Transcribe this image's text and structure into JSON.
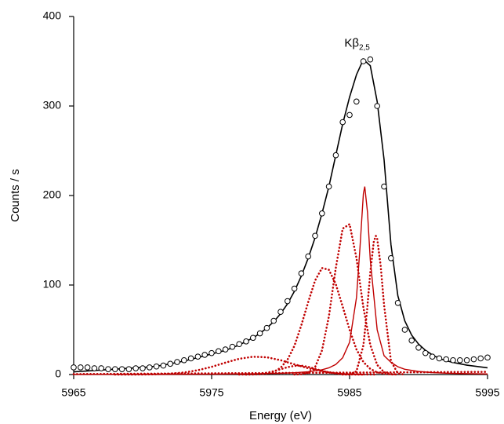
{
  "chart_data": {
    "type": "spectrum-fit",
    "x_label": "Energy (eV)",
    "y_label": "Counts / s",
    "annotation": {
      "text": "Kβ",
      "subscript": "2,5"
    },
    "xlim": [
      5965,
      5995
    ],
    "ylim": [
      0,
      400
    ],
    "xticks": [
      5965,
      5975,
      5985,
      5995
    ],
    "yticks": [
      0,
      100,
      200,
      300,
      400
    ],
    "grid": false,
    "x": [
      5965,
      5965.5,
      5966,
      5966.5,
      5967,
      5967.5,
      5968,
      5968.5,
      5969,
      5969.5,
      5970,
      5970.5,
      5971,
      5971.5,
      5972,
      5972.5,
      5973,
      5973.5,
      5974,
      5974.5,
      5975,
      5975.5,
      5976,
      5976.5,
      5977,
      5977.5,
      5978,
      5978.5,
      5979,
      5979.5,
      5980,
      5980.5,
      5981,
      5981.5,
      5982,
      5982.5,
      5983,
      5983.5,
      5984,
      5984.5,
      5985,
      5985.5,
      5986,
      5986.5,
      5987,
      5987.5,
      5988,
      5988.5,
      5989,
      5989.5,
      5990,
      5990.5,
      5991,
      5991.5,
      5992,
      5992.5,
      5993,
      5993.5,
      5994,
      5994.5,
      5995
    ],
    "series": [
      {
        "style": "dotted",
        "color": "#c00000",
        "x": [
          5965,
          5995
        ],
        "values": [
          0.5,
          3
        ]
      },
      {
        "style": "dotted",
        "color": "#c00000",
        "x": [
          5968,
          5969,
          5970,
          5971,
          5972,
          5973,
          5974,
          5975,
          5976,
          5977,
          5978,
          5979,
          5980,
          5981,
          5982,
          5983,
          5984,
          5985,
          5986,
          5987
        ],
        "values": [
          0.01,
          0.03,
          0.1,
          0.33,
          0.94,
          2.3,
          4.8,
          8.6,
          13.3,
          17.6,
          19.9,
          19.3,
          16,
          11.4,
          7,
          3.7,
          1.6,
          0.6,
          0.2,
          0.06
        ]
      },
      {
        "style": "dotted",
        "color": "#c00000",
        "x": [
          5977,
          5977.5,
          5978,
          5978.5,
          5979,
          5979.5,
          5980,
          5980.5,
          5981,
          5981.5,
          5982,
          5982.5,
          5983,
          5983.5,
          5984,
          5984.5,
          5985,
          5985.5,
          5986
        ],
        "values": [
          0.03,
          0.12,
          0.35,
          0.9,
          2,
          3.7,
          5.9,
          8.2,
          9.7,
          9.9,
          8.6,
          6.4,
          4.1,
          2.3,
          1.1,
          0.4,
          0.15,
          0.05,
          0
        ]
      },
      {
        "style": "dotted",
        "color": "#c00000",
        "x": [
          5977.5,
          5978,
          5978.5,
          5979,
          5979.5,
          5980,
          5980.5,
          5981,
          5981.5,
          5982,
          5982.5,
          5983,
          5983.5,
          5984,
          5984.5,
          5985,
          5985.5,
          5986,
          5986.5,
          5987,
          5987.5,
          5988,
          5988.5
        ],
        "values": [
          0.02,
          0.08,
          0.3,
          1.0,
          2.9,
          7.5,
          16.6,
          32,
          55,
          81,
          105,
          119,
          117,
          101,
          76,
          50,
          28,
          14,
          6.3,
          2.4,
          0.8,
          0.2,
          0.05
        ]
      },
      {
        "style": "dotted",
        "color": "#c00000",
        "x": [
          5981,
          5981.5,
          5982,
          5982.5,
          5983,
          5983.5,
          5984,
          5984.5,
          5985,
          5985.5,
          5986,
          5986.5,
          5987,
          5987.5,
          5988,
          5988.5
        ],
        "values": [
          0.04,
          0.34,
          1.9,
          8.3,
          26.9,
          65,
          119,
          163,
          168,
          130,
          75,
          33,
          10.8,
          2.6,
          0.5,
          0.07
        ]
      },
      {
        "style": "dotted",
        "color": "#c00000",
        "x": [
          5984.5,
          5985,
          5985.5,
          5986,
          5986.25,
          5986.5,
          5986.75,
          5986.9,
          5987,
          5987.25,
          5987.5,
          5988,
          5988.5,
          5989
        ],
        "values": [
          0,
          0.15,
          3.6,
          32.6,
          68.6,
          114,
          148,
          155,
          152,
          122,
          77.5,
          15,
          1.1,
          0
        ]
      },
      {
        "style": "solid",
        "color": "#c00000",
        "x": [
          5965,
          5970,
          5975,
          5978,
          5980,
          5981,
          5982,
          5983,
          5983.5,
          5984,
          5984.5,
          5985,
          5985.5,
          5985.75,
          5986,
          5986.1,
          5986.3,
          5986.5,
          5987,
          5987.5,
          5988,
          5988.5,
          5989,
          5990,
          5991,
          5992,
          5993,
          5995
        ],
        "values": [
          0.12,
          0.2,
          0.43,
          0.8,
          1.4,
          2.0,
          3.1,
          5.3,
          7.5,
          11.3,
          18.8,
          36,
          86,
          141,
          202,
          210,
          181,
          128,
          50,
          21,
          13.6,
          8.7,
          5.9,
          3.4,
          2.2,
          1.5,
          1.1,
          0.66
        ]
      },
      {
        "style": "fit",
        "color": "#000000",
        "values": [
          3,
          3.5,
          4,
          4.5,
          5,
          5.5,
          6,
          6.5,
          7,
          7.5,
          8,
          8.5,
          9.5,
          10.5,
          12,
          13.5,
          15,
          17,
          19,
          21,
          23,
          25,
          27,
          30,
          33,
          37,
          41,
          46,
          52,
          59,
          68,
          79,
          93,
          110,
          130,
          153,
          180,
          210,
          245,
          280,
          310,
          335,
          352,
          345,
          305,
          240,
          145,
          88,
          60,
          44,
          34,
          27,
          22,
          18,
          15.5,
          13.5,
          12,
          10.5,
          9.5,
          8.5,
          7.5
        ]
      },
      {
        "style": "markers",
        "color": "#000000",
        "values": [
          8,
          8,
          8,
          7,
          7,
          6,
          6,
          6,
          6,
          7,
          7,
          8,
          9,
          10,
          12,
          14,
          16,
          18,
          20,
          22,
          24,
          26,
          28,
          31,
          34,
          37,
          41,
          46,
          52,
          60,
          70,
          82,
          96,
          113,
          132,
          155,
          180,
          210,
          245,
          282,
          290,
          305,
          350,
          352,
          300,
          210,
          130,
          80,
          50,
          38,
          30,
          24,
          20,
          18,
          17,
          16,
          16,
          16,
          17,
          18,
          19
        ]
      }
    ]
  }
}
